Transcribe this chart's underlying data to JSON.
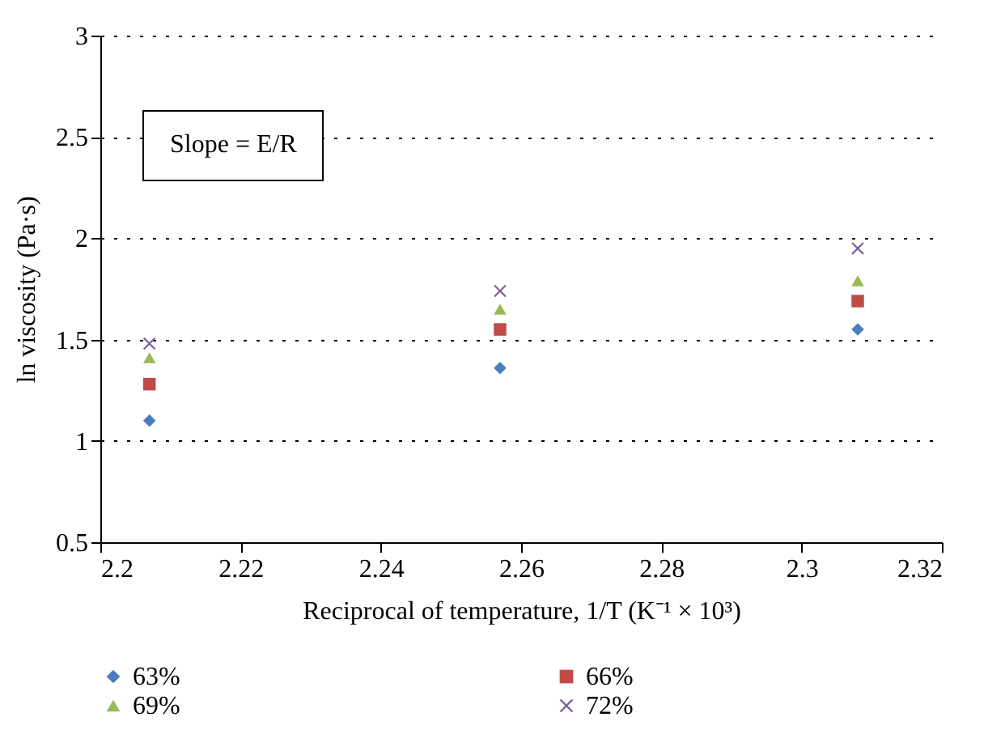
{
  "chart_data": {
    "type": "scatter",
    "xlabel": "Reciprocal of temperature, 1/T (K⁻¹ × 10³)",
    "ylabel": "ln viscosity (Pa·s)",
    "annotations": [
      "Slope = E/R"
    ],
    "x": [
      2.207,
      2.257,
      2.308
    ],
    "series": [
      {
        "name": "63%",
        "color": "#4a7ebb",
        "marker": "diamond",
        "values": [
          1.1,
          1.36,
          1.55
        ]
      },
      {
        "name": "66%",
        "color": "#be4b48",
        "marker": "square",
        "values": [
          1.28,
          1.55,
          1.69
        ]
      },
      {
        "name": "69%",
        "color": "#98b954",
        "marker": "triangle",
        "values": [
          1.41,
          1.65,
          1.79
        ]
      },
      {
        "name": "72%",
        "color": "#7d60a0",
        "marker": "cross",
        "values": [
          1.48,
          1.74,
          1.95
        ]
      }
    ],
    "xlim": [
      2.2,
      2.32
    ],
    "xticks": [
      2.2,
      2.22,
      2.24,
      2.26,
      2.28,
      2.3,
      2.32
    ],
    "ylim": [
      0.5,
      3
    ],
    "yticks": [
      0.5,
      1,
      1.5,
      2,
      2.5,
      3
    ],
    "grid": "y",
    "legend": "bottom"
  }
}
